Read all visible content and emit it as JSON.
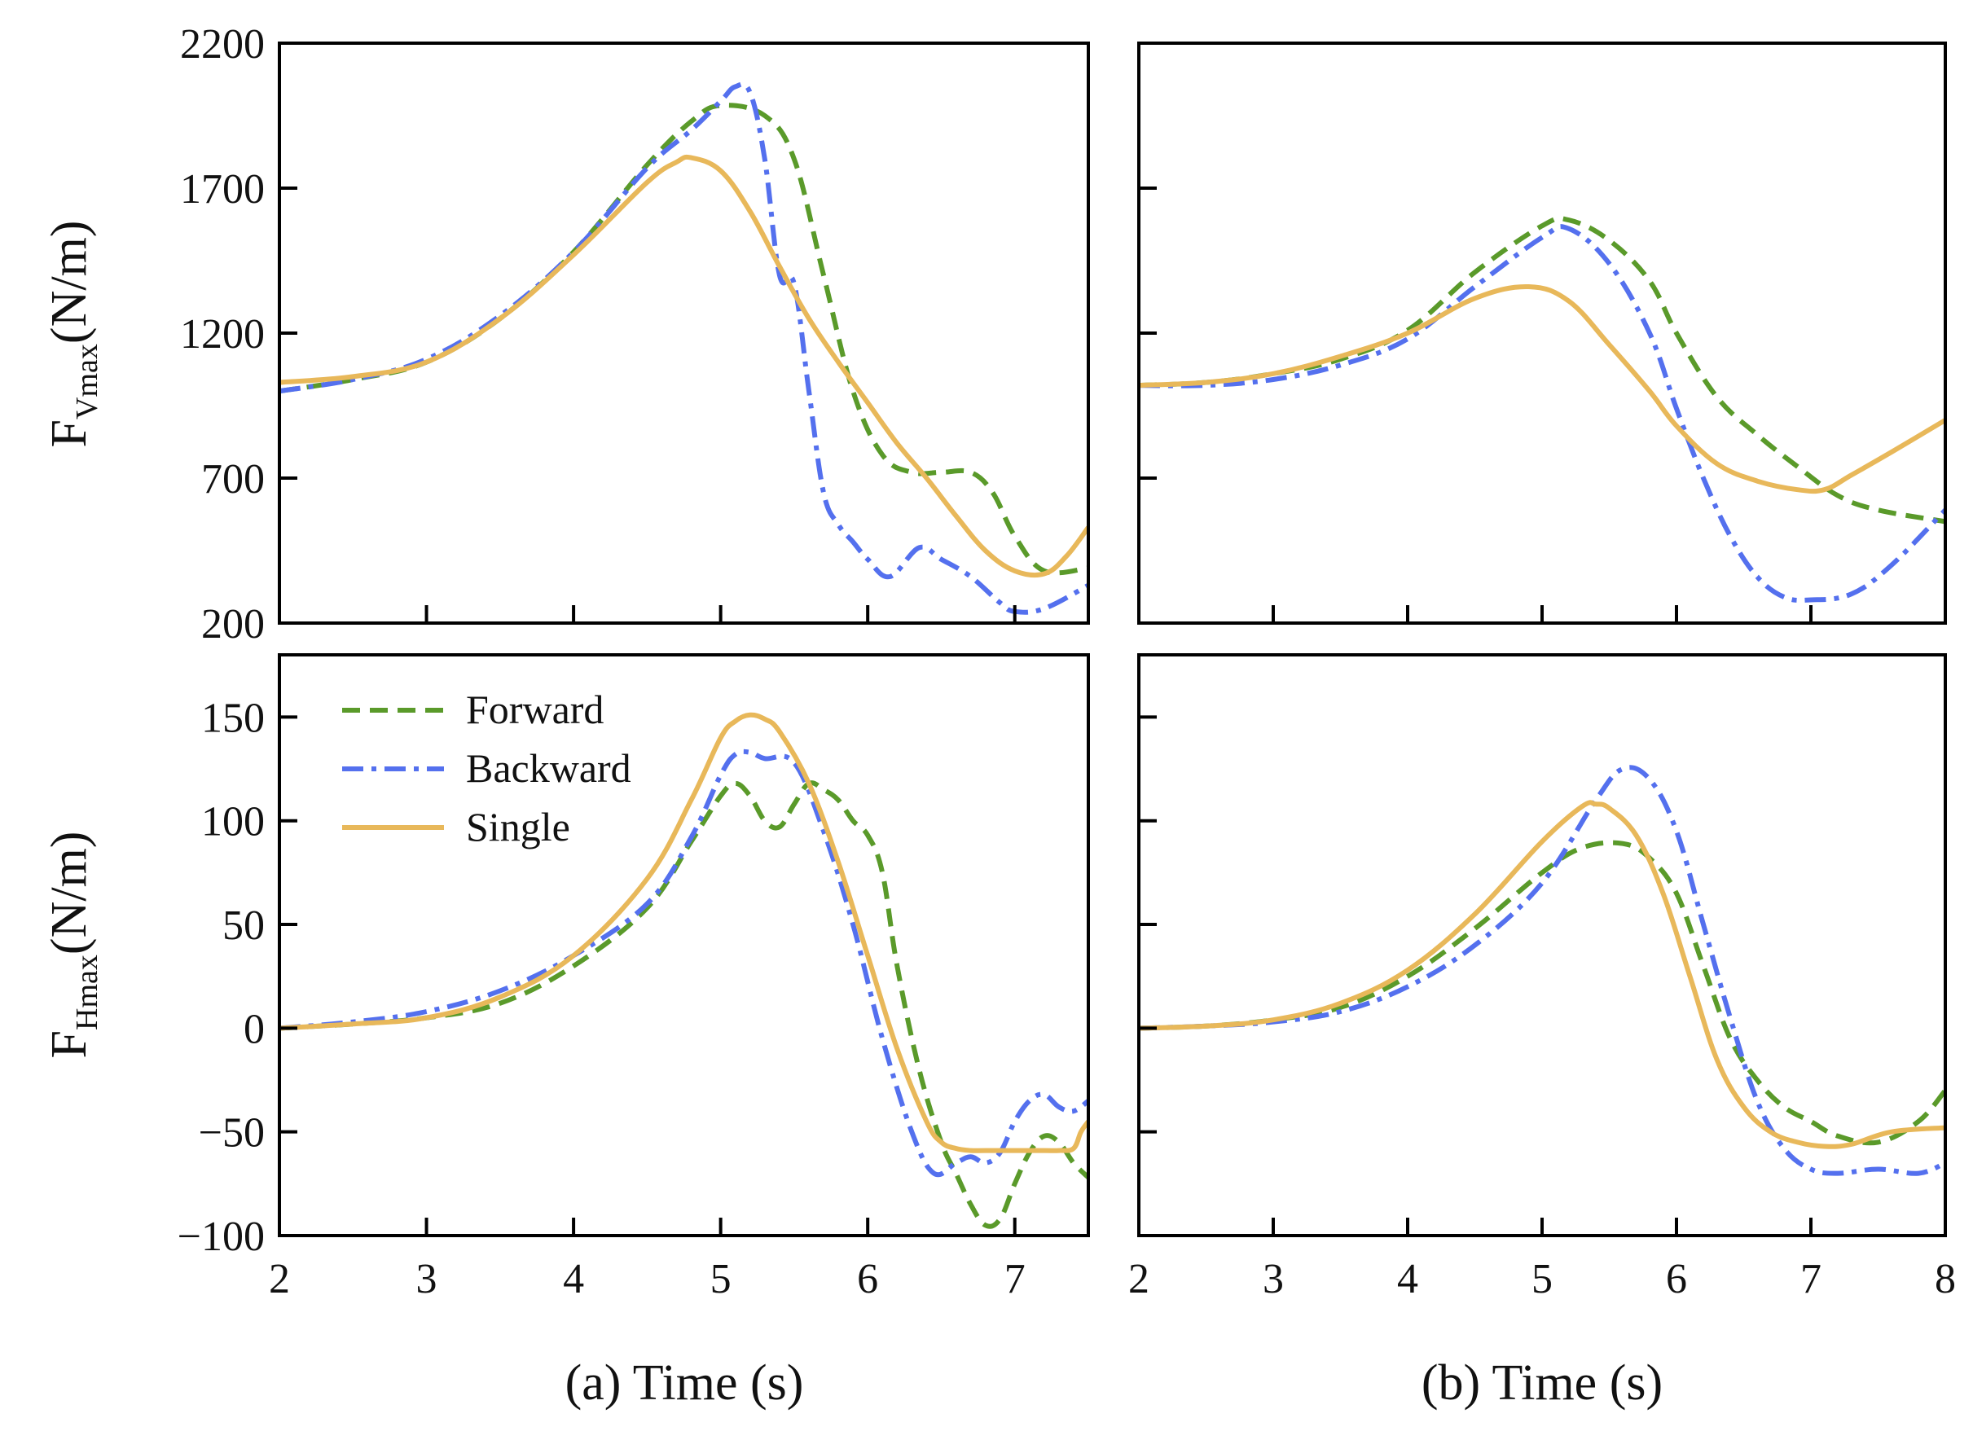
{
  "colors": {
    "Forward": "#5a9a2a",
    "Backward": "#5470ee",
    "Single": "#e8b85a"
  },
  "dash": {
    "Forward": "22 12",
    "Backward": "26 10 6 10",
    "Single": ""
  },
  "legend": [
    "Forward",
    "Backward",
    "Single"
  ],
  "xlabels": {
    "a": "(a) Time (s)",
    "b": "(b) Time (s)"
  },
  "ylabels": {
    "top": {
      "main": "F",
      "sub": "Vmax",
      "unit": "(N/m)"
    },
    "bottom": {
      "main": "F",
      "sub": "Hmax",
      "unit": "(N/m)"
    }
  },
  "chart_data": [
    {
      "id": "a-top",
      "type": "line",
      "panel": "(a)",
      "row": "top",
      "xlim": [
        2,
        7.5
      ],
      "ylim": [
        200,
        2200
      ],
      "yticks": [
        200,
        700,
        1200,
        1700,
        2200
      ],
      "ytick_labels": [
        "200",
        "700",
        "1200",
        "1700",
        "2200"
      ],
      "xticks": [
        2,
        3,
        4,
        5,
        6,
        7
      ],
      "series": [
        {
          "name": "Forward",
          "x": [
            2,
            2.5,
            3,
            3.5,
            4,
            4.5,
            4.8,
            5,
            5.3,
            5.5,
            5.7,
            5.9,
            6.1,
            6.3,
            6.5,
            6.7,
            6.85,
            7,
            7.2,
            7.5
          ],
          "y": [
            1000,
            1040,
            1100,
            1250,
            1480,
            1780,
            1930,
            1985,
            1950,
            1800,
            1400,
            1000,
            780,
            720,
            720,
            720,
            650,
            500,
            380,
            390
          ]
        },
        {
          "name": "Backward",
          "x": [
            2,
            2.5,
            3,
            3.5,
            4,
            4.5,
            4.8,
            5,
            5.1,
            5.2,
            5.3,
            5.4,
            5.5,
            5.6,
            5.7,
            5.8,
            5.9,
            6,
            6.15,
            6.35,
            6.5,
            6.7,
            6.9,
            7,
            7.2,
            7.5
          ],
          "y": [
            1000,
            1040,
            1110,
            1260,
            1480,
            1770,
            1900,
            2000,
            2050,
            2030,
            1800,
            1400,
            1370,
            1000,
            650,
            540,
            480,
            420,
            360,
            460,
            420,
            360,
            270,
            240,
            250,
            330
          ]
        },
        {
          "name": "Single",
          "x": [
            2,
            2.5,
            3,
            3.5,
            4,
            4.5,
            4.7,
            4.8,
            5,
            5.2,
            5.4,
            5.6,
            5.8,
            6,
            6.2,
            6.4,
            6.6,
            6.8,
            7,
            7.2,
            7.35,
            7.5
          ],
          "y": [
            1030,
            1050,
            1100,
            1250,
            1470,
            1720,
            1790,
            1805,
            1760,
            1620,
            1430,
            1250,
            1100,
            960,
            820,
            700,
            570,
            450,
            380,
            370,
            430,
            530
          ]
        }
      ]
    },
    {
      "id": "b-top",
      "type": "line",
      "panel": "(b)",
      "row": "top",
      "xlim": [
        2,
        8
      ],
      "ylim": [
        200,
        2200
      ],
      "yticks": [
        200,
        700,
        1200,
        1700,
        2200
      ],
      "xticks": [
        2,
        3,
        4,
        5,
        6,
        7,
        8
      ],
      "series": [
        {
          "name": "Forward",
          "x": [
            2,
            2.5,
            3,
            3.5,
            4,
            4.5,
            5,
            5.2,
            5.5,
            5.8,
            6,
            6.3,
            6.6,
            6.9,
            7.2,
            7.5,
            8
          ],
          "y": [
            1020,
            1030,
            1060,
            1110,
            1210,
            1410,
            1570,
            1590,
            1520,
            1380,
            1200,
            980,
            850,
            740,
            640,
            590,
            550
          ]
        },
        {
          "name": "Backward",
          "x": [
            2,
            2.5,
            3,
            3.5,
            4,
            4.5,
            5,
            5.2,
            5.5,
            5.8,
            6,
            6.2,
            6.4,
            6.6,
            6.8,
            7,
            7.3,
            7.6,
            8
          ],
          "y": [
            1020,
            1020,
            1040,
            1090,
            1180,
            1360,
            1530,
            1560,
            1440,
            1200,
            940,
            700,
            500,
            360,
            290,
            280,
            300,
            400,
            590
          ]
        },
        {
          "name": "Single",
          "x": [
            2,
            2.5,
            3,
            3.5,
            4,
            4.5,
            4.9,
            5.2,
            5.5,
            5.8,
            6,
            6.3,
            6.6,
            6.9,
            7.1,
            7.3,
            7.6,
            8
          ],
          "y": [
            1020,
            1030,
            1060,
            1120,
            1200,
            1320,
            1360,
            1310,
            1160,
            1000,
            880,
            750,
            690,
            660,
            660,
            710,
            790,
            900
          ]
        }
      ]
    },
    {
      "id": "a-bottom",
      "type": "line",
      "panel": "(a)",
      "row": "bottom",
      "xlim": [
        2,
        7.5
      ],
      "ylim": [
        -100,
        180
      ],
      "yticks": [
        -100,
        -50,
        0,
        50,
        100,
        150
      ],
      "ytick_labels": [
        "−100",
        "−50",
        "0",
        "50",
        "100",
        "150"
      ],
      "xticks": [
        2,
        3,
        4,
        5,
        6,
        7
      ],
      "xtick_labels": [
        "2",
        "3",
        "4",
        "5",
        "6",
        "7"
      ],
      "series": [
        {
          "name": "Forward",
          "x": [
            2,
            2.5,
            3,
            3.5,
            4,
            4.5,
            4.8,
            5,
            5.1,
            5.2,
            5.3,
            5.4,
            5.5,
            5.6,
            5.7,
            5.8,
            5.9,
            6,
            6.1,
            6.2,
            6.35,
            6.5,
            6.6,
            6.7,
            6.8,
            6.9,
            7,
            7.1,
            7.2,
            7.3,
            7.4,
            7.5
          ],
          "y": [
            0,
            2,
            5,
            12,
            30,
            58,
            90,
            112,
            118,
            112,
            100,
            97,
            108,
            118,
            115,
            110,
            100,
            93,
            75,
            30,
            -20,
            -55,
            -70,
            -85,
            -95,
            -92,
            -75,
            -60,
            -52,
            -55,
            -65,
            -72
          ]
        },
        {
          "name": "Backward",
          "x": [
            2,
            2.5,
            3,
            3.5,
            4,
            4.5,
            4.8,
            5,
            5.1,
            5.2,
            5.3,
            5.5,
            5.7,
            5.9,
            6.1,
            6.3,
            6.45,
            6.6,
            6.7,
            6.8,
            6.9,
            7,
            7.1,
            7.2,
            7.3,
            7.4,
            7.5
          ],
          "y": [
            0,
            3,
            8,
            18,
            35,
            60,
            92,
            122,
            132,
            133,
            130,
            128,
            95,
            50,
            -5,
            -50,
            -70,
            -65,
            -62,
            -65,
            -60,
            -45,
            -35,
            -32,
            -38,
            -40,
            -35
          ]
        },
        {
          "name": "Single",
          "x": [
            2,
            2.5,
            3,
            3.5,
            4,
            4.5,
            4.8,
            5,
            5.1,
            5.2,
            5.3,
            5.4,
            5.6,
            5.8,
            6,
            6.2,
            6.4,
            6.5,
            6.6,
            6.7,
            6.8,
            7,
            7.2,
            7.3,
            7.4,
            7.45,
            7.5
          ],
          "y": [
            0,
            2,
            5,
            15,
            35,
            72,
            110,
            140,
            148,
            151,
            149,
            143,
            118,
            80,
            35,
            -10,
            -45,
            -55,
            -58,
            -59,
            -59,
            -59,
            -59,
            -59,
            -58,
            -50,
            -45
          ]
        }
      ]
    },
    {
      "id": "b-bottom",
      "type": "line",
      "panel": "(b)",
      "row": "bottom",
      "xlim": [
        2,
        8
      ],
      "ylim": [
        -100,
        180
      ],
      "yticks": [
        -100,
        -50,
        0,
        50,
        100,
        150
      ],
      "xticks": [
        2,
        3,
        4,
        5,
        6,
        7,
        8
      ],
      "xtick_labels": [
        "2",
        "3",
        "4",
        "5",
        "6",
        "7",
        "8"
      ],
      "series": [
        {
          "name": "Forward",
          "x": [
            2,
            2.5,
            3,
            3.5,
            4,
            4.5,
            5,
            5.3,
            5.6,
            5.8,
            6,
            6.2,
            6.4,
            6.6,
            6.8,
            7,
            7.2,
            7.5,
            7.8,
            8
          ],
          "y": [
            0,
            1,
            4,
            10,
            25,
            48,
            75,
            87,
            89,
            82,
            65,
            30,
            -5,
            -25,
            -38,
            -45,
            -52,
            -55,
            -45,
            -30
          ]
        },
        {
          "name": "Backward",
          "x": [
            2,
            2.5,
            3,
            3.5,
            4,
            4.5,
            5,
            5.4,
            5.6,
            5.8,
            6,
            6.2,
            6.4,
            6.6,
            6.8,
            7,
            7.2,
            7.5,
            7.8,
            8
          ],
          "y": [
            0,
            1,
            3,
            8,
            20,
            40,
            70,
            110,
            125,
            120,
            95,
            50,
            5,
            -35,
            -58,
            -68,
            -70,
            -68,
            -70,
            -65
          ]
        },
        {
          "name": "Single",
          "x": [
            2,
            2.5,
            3,
            3.5,
            4,
            4.5,
            5,
            5.3,
            5.4,
            5.5,
            5.7,
            5.9,
            6.1,
            6.3,
            6.5,
            6.7,
            6.9,
            7.1,
            7.3,
            7.6,
            8
          ],
          "y": [
            0,
            1,
            4,
            12,
            28,
            55,
            90,
            107,
            108,
            106,
            93,
            65,
            25,
            -15,
            -38,
            -50,
            -55,
            -57,
            -56,
            -50,
            -48
          ]
        }
      ]
    }
  ]
}
